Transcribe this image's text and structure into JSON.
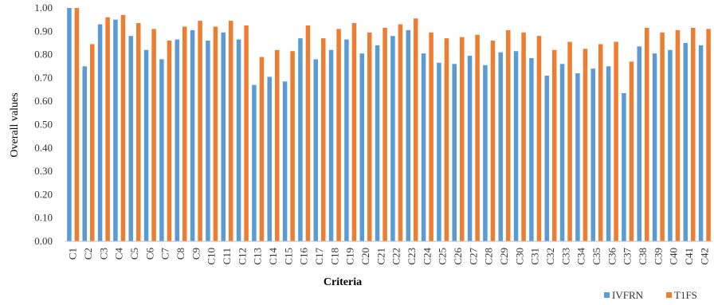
{
  "chart_data": {
    "type": "bar",
    "title": "",
    "xlabel": "Criteria",
    "ylabel": "Overall values",
    "ylim": [
      0,
      1
    ],
    "yticks": [
      "0.00",
      "0.10",
      "0.20",
      "0.30",
      "0.40",
      "0.50",
      "0.60",
      "0.70",
      "0.80",
      "0.90",
      "1.00"
    ],
    "grid": false,
    "legend": "bottom-right",
    "categories": [
      "C1",
      "C2",
      "C3",
      "C4",
      "C5",
      "C6",
      "C7",
      "C8",
      "C9",
      "C10",
      "C11",
      "C12",
      "C13",
      "C14",
      "C15",
      "C16",
      "C17",
      "C18",
      "C19",
      "C20",
      "C21",
      "C22",
      "C23",
      "C24",
      "C25",
      "C26",
      "C27",
      "C28",
      "C29",
      "C30",
      "C31",
      "C32",
      "C33",
      "C34",
      "C35",
      "C36",
      "C37",
      "C38",
      "C39",
      "C40",
      "C41",
      "C42"
    ],
    "series": [
      {
        "name": "IVFRN",
        "color": "#5b9bd5",
        "values": [
          1.0,
          0.75,
          0.93,
          0.95,
          0.88,
          0.82,
          0.78,
          0.865,
          0.905,
          0.86,
          0.895,
          0.865,
          0.67,
          0.705,
          0.685,
          0.87,
          0.78,
          0.82,
          0.865,
          0.805,
          0.84,
          0.88,
          0.905,
          0.805,
          0.765,
          0.76,
          0.795,
          0.755,
          0.81,
          0.815,
          0.785,
          0.71,
          0.76,
          0.72,
          0.74,
          0.75,
          0.635,
          0.835,
          0.805,
          0.82,
          0.85,
          0.84
        ]
      },
      {
        "name": "T1FS",
        "color": "#ed7d31",
        "values": [
          1.0,
          0.845,
          0.96,
          0.97,
          0.935,
          0.91,
          0.86,
          0.92,
          0.945,
          0.92,
          0.945,
          0.925,
          0.79,
          0.82,
          0.815,
          0.925,
          0.87,
          0.91,
          0.935,
          0.895,
          0.915,
          0.93,
          0.955,
          0.895,
          0.87,
          0.875,
          0.885,
          0.86,
          0.905,
          0.895,
          0.88,
          0.82,
          0.855,
          0.825,
          0.845,
          0.855,
          0.77,
          0.915,
          0.895,
          0.905,
          0.915,
          0.91
        ]
      }
    ]
  }
}
